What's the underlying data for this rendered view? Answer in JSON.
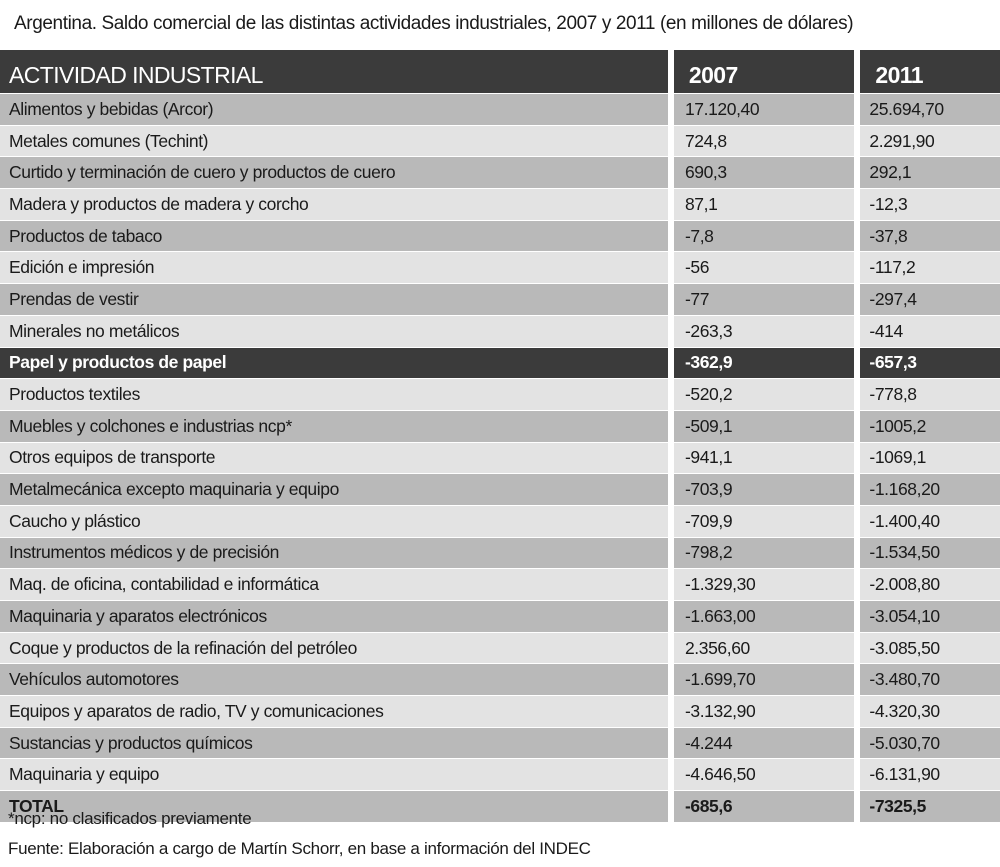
{
  "chart_data": {
    "type": "table",
    "title": "Argentina. Saldo comercial de las distintas actividades industriales, 2007 y 2011 (en millones de dólares)",
    "columns": [
      "ACTIVIDAD INDUSTRIAL",
      "2007",
      "2011"
    ],
    "rows": [
      {
        "name": "Alimentos y bebidas (Arcor)",
        "v2007": "17.120,40",
        "v2011": "25.694,70"
      },
      {
        "name": "Metales comunes (Techint)",
        "v2007": "724,8",
        "v2011": "2.291,90"
      },
      {
        "name": "Curtido y terminación de cuero y productos de cuero",
        "v2007": "690,3",
        "v2011": "292,1"
      },
      {
        "name": "Madera y productos de madera y corcho",
        "v2007": "87,1",
        "v2011": "-12,3"
      },
      {
        "name": "Productos de tabaco",
        "v2007": "-7,8",
        "v2011": "-37,8"
      },
      {
        "name": "Edición e impresión",
        "v2007": "-56",
        "v2011": "-117,2"
      },
      {
        "name": "Prendas de vestir",
        "v2007": "-77",
        "v2011": "-297,4"
      },
      {
        "name": "Minerales no metálicos",
        "v2007": "-263,3",
        "v2011": "-414"
      },
      {
        "name": "Papel y productos de papel",
        "v2007": "-362,9",
        "v2011": "-657,3",
        "highlight": true
      },
      {
        "name": "Productos textiles",
        "v2007": "-520,2",
        "v2011": "-778,8"
      },
      {
        "name": "Muebles y colchones e industrias ncp*",
        "v2007": "-509,1",
        "v2011": "-1005,2"
      },
      {
        "name": "Otros equipos de transporte",
        "v2007": "-941,1",
        "v2011": "-1069,1"
      },
      {
        "name": "Metalmecánica excepto maquinaria y equipo",
        "v2007": "-703,9",
        "v2011": "-1.168,20"
      },
      {
        "name": "Caucho y plástico",
        "v2007": "-709,9",
        "v2011": "-1.400,40"
      },
      {
        "name": "Instrumentos médicos y de precisión",
        "v2007": "-798,2",
        "v2011": "-1.534,50"
      },
      {
        "name": "Maq. de oficina, contabilidad e informática",
        "v2007": "-1.329,30",
        "v2011": "-2.008,80"
      },
      {
        "name": "Maquinaria y aparatos electrónicos",
        "v2007": "-1.663,00",
        "v2011": "-3.054,10"
      },
      {
        "name": "Coque y productos de la refinación del petróleo",
        "v2007": "2.356,60",
        "v2011": "-3.085,50"
      },
      {
        "name": "Vehículos automotores",
        "v2007": "-1.699,70",
        "v2011": "-3.480,70"
      },
      {
        "name": "Equipos y aparatos de radio, TV y comunicaciones",
        "v2007": "-3.132,90",
        "v2011": "-4.320,30"
      },
      {
        "name": "Sustancias y productos químicos",
        "v2007": "-4.244",
        "v2011": "-5.030,70"
      },
      {
        "name": "Maquinaria y equipo",
        "v2007": "-4.646,50",
        "v2011": "-6.131,90"
      }
    ],
    "total": {
      "name": "TOTAL",
      "v2007": "-685,6",
      "v2011": "-7325,5"
    },
    "colors": {
      "header": "#3b3b3b",
      "row_dark": "#b9b9b9",
      "row_light": "#e3e3e3"
    }
  },
  "notes": {
    "footnote": "*ncp: no clasificados previamente",
    "source": "Fuente: Elaboración a cargo de Martín Schorr, en base a información del INDEC"
  }
}
